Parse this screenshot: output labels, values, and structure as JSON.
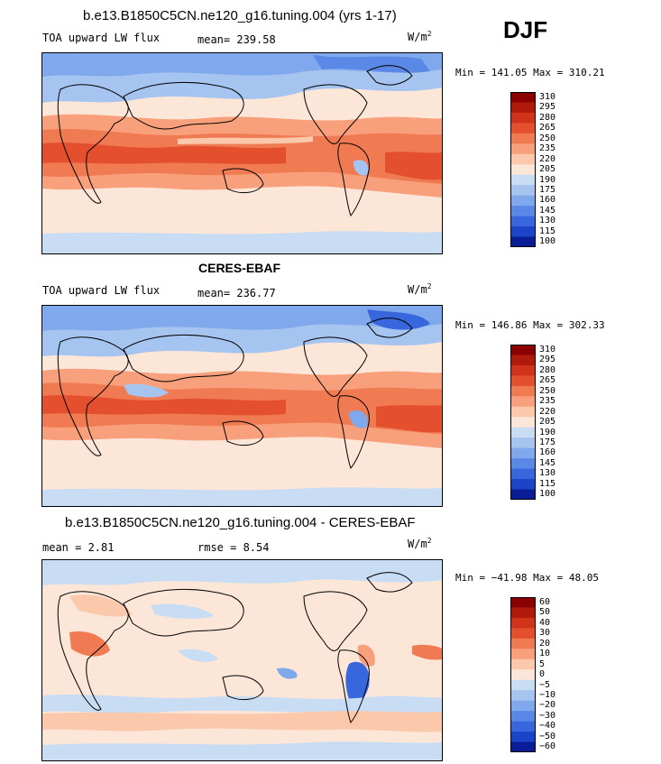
{
  "season": "DJF",
  "panels": [
    {
      "title": "b.e13.B1850C5CN.ne120_g16.tuning.004 (yrs 1-17)",
      "variable": "TOA upward LW flux",
      "mean_text": "mean= 239.58",
      "units": "W/m",
      "units_exp": "2",
      "minmax": "Min = 141.05 Max = 310.21",
      "levels": [
        "310",
        "295",
        "280",
        "265",
        "250",
        "235",
        "220",
        "205",
        "190",
        "175",
        "160",
        "145",
        "130",
        "115",
        "100"
      ]
    },
    {
      "title": "CERES-EBAF",
      "variable": "TOA upward LW flux",
      "mean_text": "mean= 236.77",
      "units": "W/m",
      "units_exp": "2",
      "minmax": "Min = 146.86 Max = 302.33",
      "levels": [
        "310",
        "295",
        "280",
        "265",
        "250",
        "235",
        "220",
        "205",
        "190",
        "175",
        "160",
        "145",
        "130",
        "115",
        "100"
      ]
    },
    {
      "title": "b.e13.B1850C5CN.ne120_g16.tuning.004 - CERES-EBAF",
      "mean_text": "mean =   2.81",
      "rmse_text": "rmse =   8.54",
      "units": "W/m",
      "units_exp": "2",
      "minmax": "Min = −41.98 Max =  48.05",
      "levels": [
        "60",
        "50",
        "40",
        "30",
        "20",
        "10",
        "5",
        "0",
        "−5",
        "−10",
        "−20",
        "−30",
        "−40",
        "−50",
        "−60"
      ]
    }
  ],
  "colors": {
    "abs_scale": [
      "#8b0000",
      "#b01a0a",
      "#d0321a",
      "#e4502e",
      "#f07a52",
      "#f8a07c",
      "#fcc8ac",
      "#fbe6d8",
      "#c8dcf4",
      "#a6c4f0",
      "#80a8ec",
      "#5a88e6",
      "#3866dc",
      "#1c44c8",
      "#0a1c96"
    ],
    "diff_scale": [
      "#8b0000",
      "#b01a0a",
      "#d0321a",
      "#e4502e",
      "#f07a52",
      "#f8a07c",
      "#fcc8ac",
      "#fbe6d8",
      "#c8dcf4",
      "#a6c4f0",
      "#80a8ec",
      "#5a88e6",
      "#3866dc",
      "#1c44c8",
      "#0a1c96"
    ]
  }
}
